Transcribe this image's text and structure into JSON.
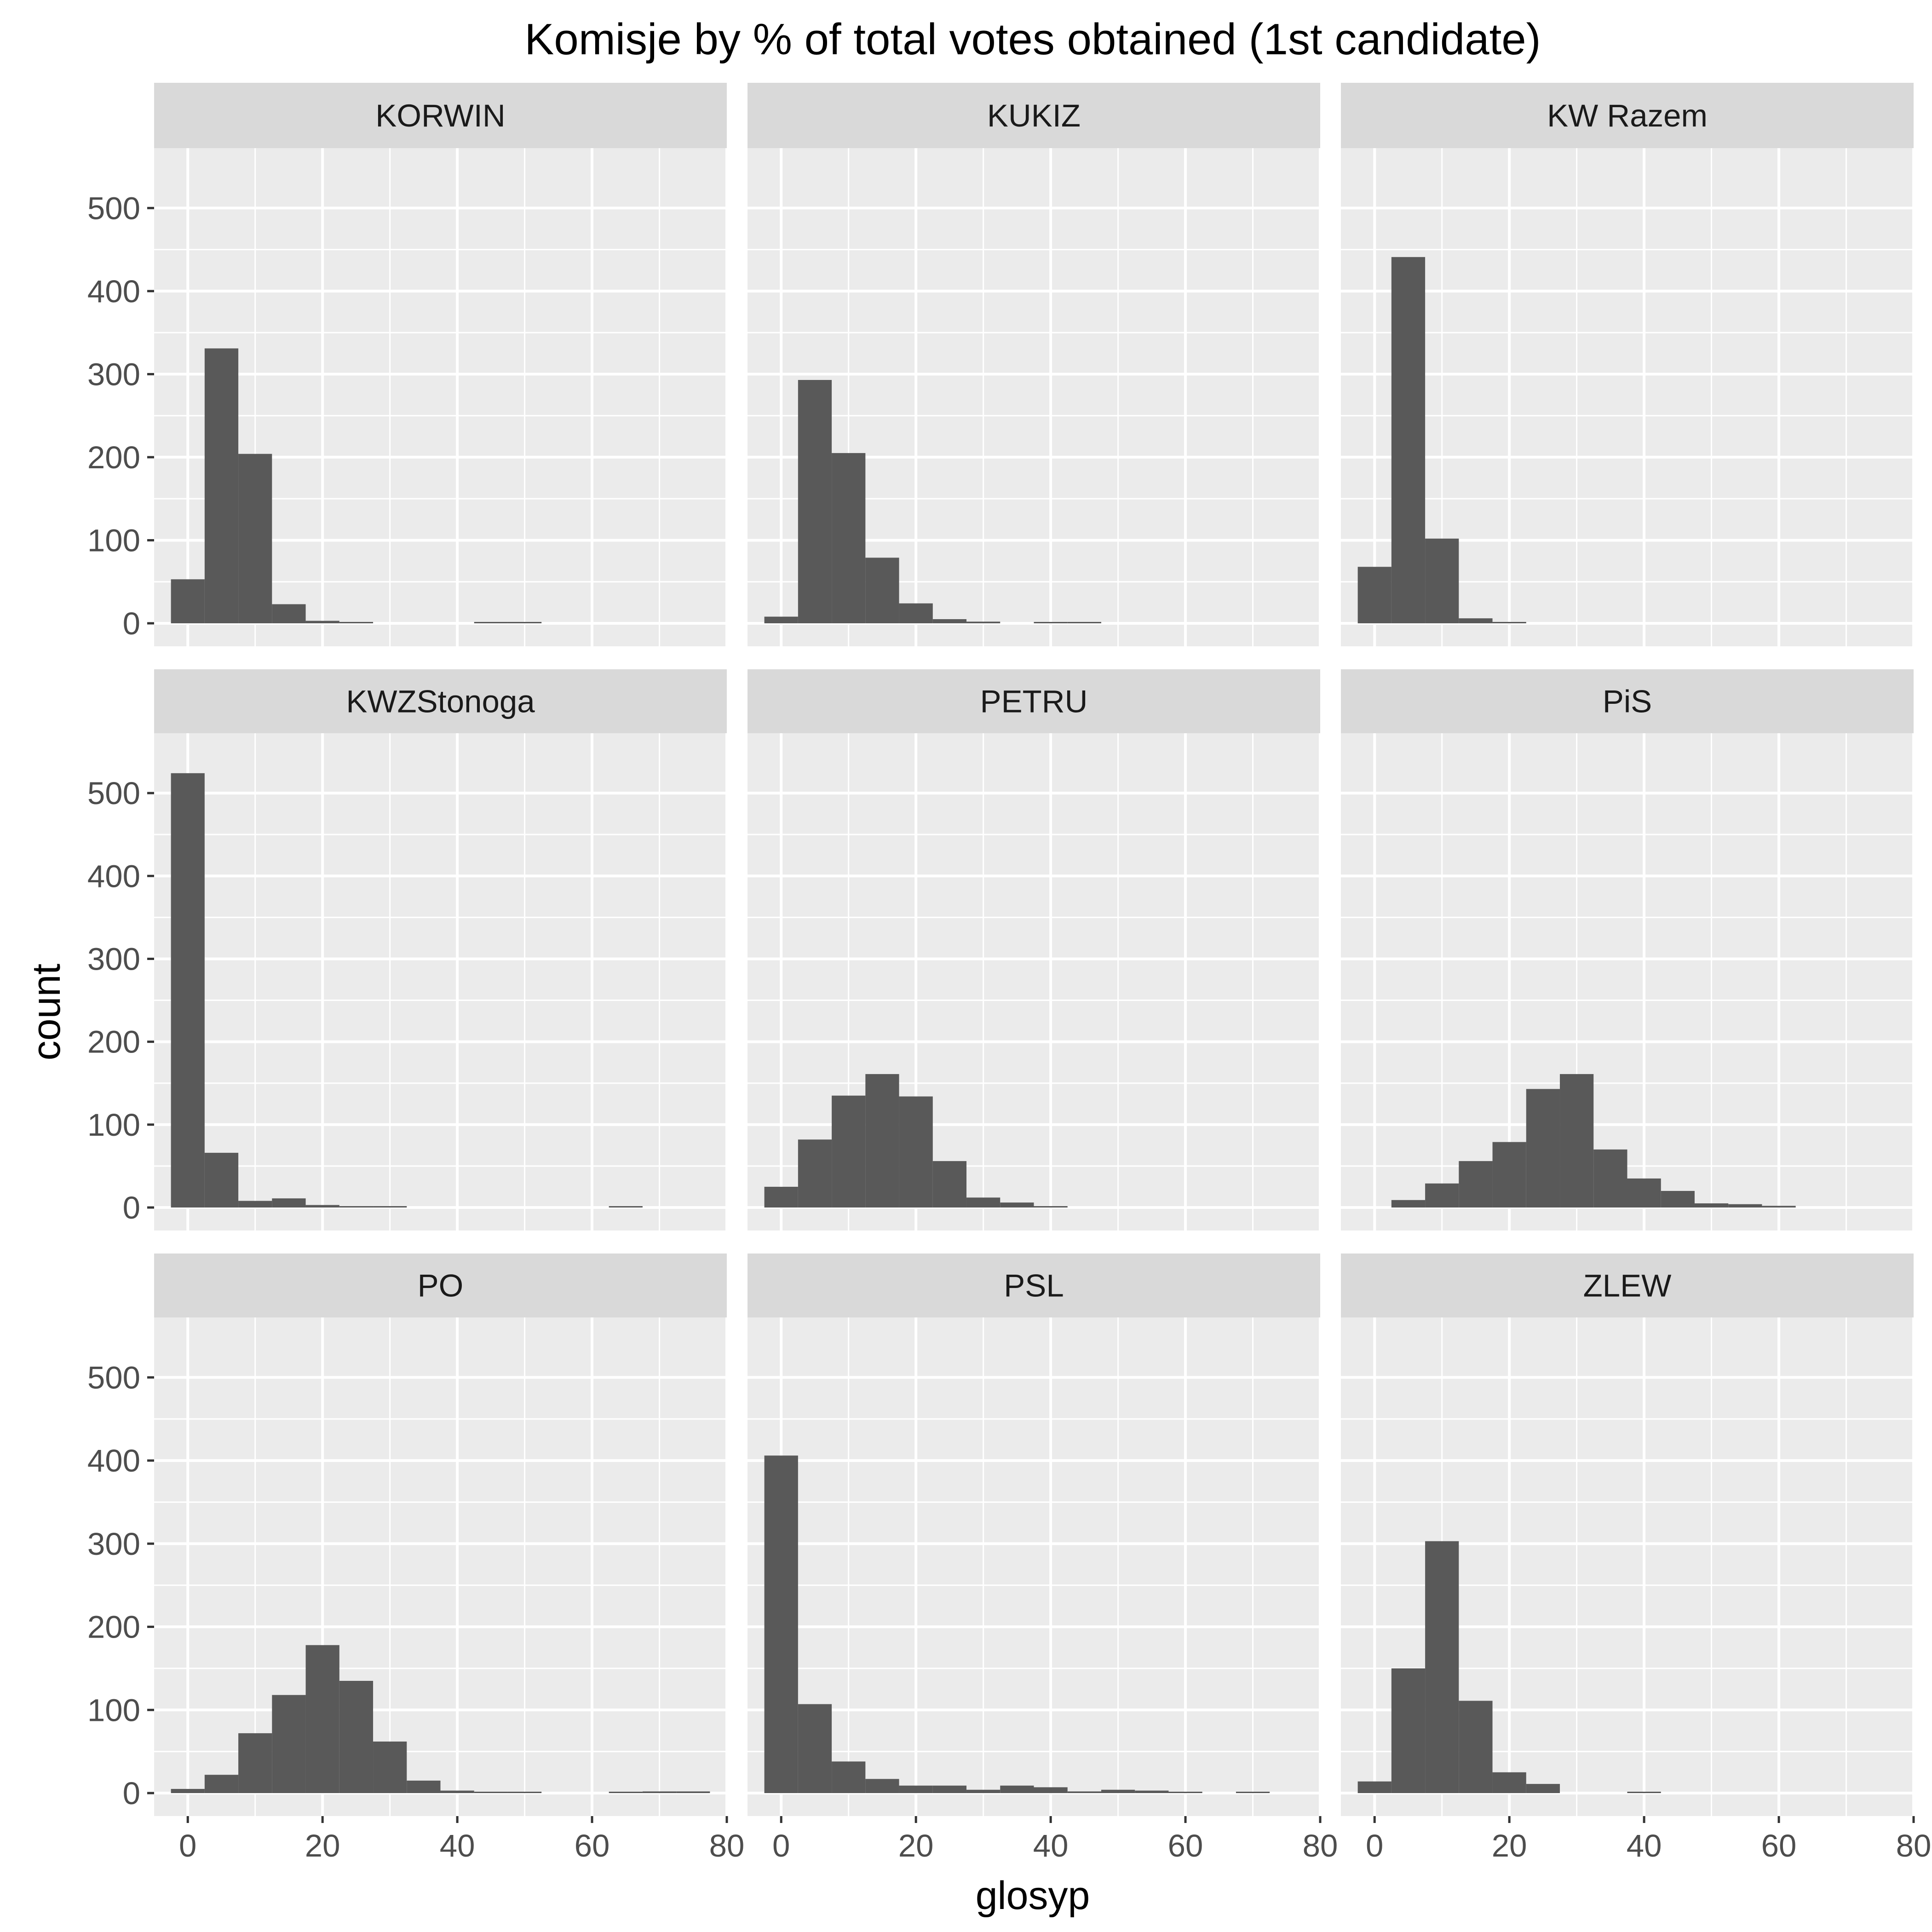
{
  "chart_data": {
    "type": "bar",
    "chart_kind": "faceted histogram",
    "title": "Komisje by % of total votes obtained (1st candidate)",
    "xlabel": "glosyp",
    "ylabel": "count",
    "xlim": [
      -5,
      80
    ],
    "ylim": [
      0,
      550
    ],
    "x_ticks": [
      0,
      20,
      40,
      60,
      80
    ],
    "y_ticks": [
      0,
      100,
      200,
      300,
      400,
      500
    ],
    "bin_width": 5,
    "bin_centers": [
      0,
      5,
      10,
      15,
      20,
      25,
      30,
      35,
      40,
      45,
      50,
      55,
      60,
      65,
      70,
      75
    ],
    "grid": true,
    "bar_color": "#595959",
    "panel_background": "#ebebeb",
    "strip_background": "#d9d9d9",
    "gridline_color": "#ffffff",
    "facets": [
      {
        "name": "KORWIN",
        "values": [
          53,
          331,
          204,
          23,
          3,
          1,
          0,
          0,
          0,
          1,
          1,
          0,
          0,
          0,
          0,
          0
        ]
      },
      {
        "name": "KUKIZ",
        "values": [
          8,
          293,
          205,
          79,
          24,
          5,
          2,
          0,
          1,
          1,
          0,
          0,
          0,
          0,
          0,
          0
        ]
      },
      {
        "name": "KW Razem",
        "values": [
          68,
          441,
          102,
          6,
          1,
          0,
          0,
          0,
          0,
          0,
          0,
          0,
          0,
          0,
          0,
          0
        ]
      },
      {
        "name": "KWZStonoga",
        "values": [
          524,
          66,
          8,
          11,
          3,
          1,
          1,
          0,
          0,
          0,
          0,
          0,
          0,
          1,
          0,
          0
        ]
      },
      {
        "name": "PETRU",
        "values": [
          25,
          82,
          135,
          161,
          134,
          56,
          12,
          6,
          1,
          0,
          0,
          0,
          0,
          0,
          0,
          0
        ]
      },
      {
        "name": "PiS",
        "values": [
          0,
          9,
          29,
          56,
          79,
          143,
          161,
          70,
          35,
          20,
          5,
          4,
          2,
          0,
          0,
          0
        ]
      },
      {
        "name": "PO",
        "values": [
          5,
          22,
          72,
          118,
          178,
          135,
          62,
          15,
          3,
          1,
          1,
          0,
          0,
          1,
          2,
          2
        ]
      },
      {
        "name": "PSL",
        "values": [
          406,
          107,
          38,
          17,
          9,
          9,
          4,
          9,
          7,
          2,
          4,
          3,
          1,
          0,
          1,
          0
        ]
      },
      {
        "name": "ZLEW",
        "values": [
          14,
          150,
          303,
          111,
          25,
          11,
          0,
          0,
          1,
          0,
          0,
          0,
          0,
          0,
          0,
          0
        ]
      }
    ]
  }
}
